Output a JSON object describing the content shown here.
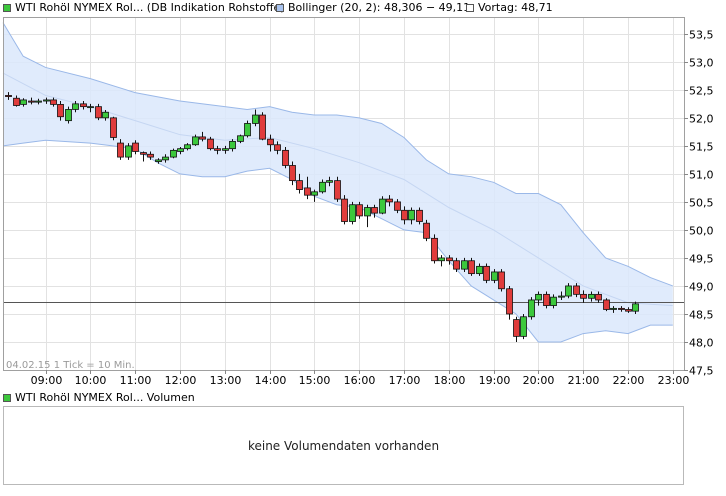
{
  "legend": {
    "series_label": "WTI Rohöl NYMEX Rol... (DB Indikation Rohstoffe)",
    "bollinger_label": "Bollinger (20, 2): 48,306 − 49,11",
    "vortag_label": "Vortag: 48,71",
    "series_color": "#3cc83c",
    "bollinger_color": "#a9c4f0",
    "vortag_color": "#ffffff"
  },
  "chart_info": "04.02.15   1 Tick = 10 Min.",
  "volume": {
    "label": "WTI Rohöl NYMEX Rol... Volumen",
    "color": "#3cc83c",
    "empty_text": "keine Volumendaten vorhanden"
  },
  "chart_data": {
    "type": "candlestick",
    "title": "WTI Rohöl NYMEX Rol... (DB Indikation Rohstoffe)",
    "x_tick_labels": [
      "09:00",
      "10:00",
      "11:00",
      "12:00",
      "13:00",
      "14:00",
      "15:00",
      "16:00",
      "17:00",
      "18:00",
      "19:00",
      "20:00",
      "21:00",
      "22:00",
      "23:00"
    ],
    "y_tick_labels": [
      "53,5",
      "53,0",
      "52,5",
      "52,0",
      "51,5",
      "51,0",
      "50,5",
      "50,0",
      "49,5",
      "49,0",
      "48,5",
      "48,0",
      "47,5"
    ],
    "y_ticks": [
      53.5,
      53.0,
      52.5,
      52.0,
      51.5,
      51.0,
      50.5,
      50.0,
      49.5,
      49.0,
      48.5,
      48.0,
      47.5
    ],
    "ylim": [
      47.5,
      53.8
    ],
    "x_range_hours": [
      8.05,
      23.25
    ],
    "grid": true,
    "reference_line": {
      "name": "Vortag",
      "value": 48.71
    },
    "up_color": "#3cc83c",
    "down_color": "#e03c3c",
    "candles": [
      {
        "t": "08:10",
        "o": 52.4,
        "h": 52.46,
        "l": 52.32,
        "c": 52.38
      },
      {
        "t": "08:20",
        "o": 52.35,
        "h": 52.4,
        "l": 52.2,
        "c": 52.22
      },
      {
        "t": "08:30",
        "o": 52.24,
        "h": 52.35,
        "l": 52.2,
        "c": 52.32
      },
      {
        "t": "08:40",
        "o": 52.3,
        "h": 52.36,
        "l": 52.24,
        "c": 52.28
      },
      {
        "t": "08:50",
        "o": 52.28,
        "h": 52.34,
        "l": 52.24,
        "c": 52.3
      },
      {
        "t": "09:00",
        "o": 52.3,
        "h": 52.36,
        "l": 52.25,
        "c": 52.32
      },
      {
        "t": "09:10",
        "o": 52.32,
        "h": 52.36,
        "l": 52.2,
        "c": 52.24
      },
      {
        "t": "09:20",
        "o": 52.24,
        "h": 52.3,
        "l": 51.95,
        "c": 52.02
      },
      {
        "t": "09:30",
        "o": 51.95,
        "h": 52.2,
        "l": 51.9,
        "c": 52.15
      },
      {
        "t": "09:40",
        "o": 52.15,
        "h": 52.3,
        "l": 52.1,
        "c": 52.25
      },
      {
        "t": "09:50",
        "o": 52.25,
        "h": 52.3,
        "l": 52.15,
        "c": 52.2
      },
      {
        "t": "10:00",
        "o": 52.2,
        "h": 52.25,
        "l": 52.1,
        "c": 52.2
      },
      {
        "t": "10:10",
        "o": 52.2,
        "h": 52.25,
        "l": 51.96,
        "c": 52.0
      },
      {
        "t": "10:20",
        "o": 52.0,
        "h": 52.14,
        "l": 51.95,
        "c": 52.1
      },
      {
        "t": "10:30",
        "o": 52.0,
        "h": 52.02,
        "l": 51.6,
        "c": 51.65
      },
      {
        "t": "10:40",
        "o": 51.55,
        "h": 51.62,
        "l": 51.25,
        "c": 51.3
      },
      {
        "t": "10:50",
        "o": 51.3,
        "h": 51.55,
        "l": 51.25,
        "c": 51.5
      },
      {
        "t": "11:00",
        "o": 51.55,
        "h": 51.6,
        "l": 51.35,
        "c": 51.4
      },
      {
        "t": "11:10",
        "o": 51.38,
        "h": 51.4,
        "l": 51.22,
        "c": 51.35
      },
      {
        "t": "11:20",
        "o": 51.35,
        "h": 51.4,
        "l": 51.25,
        "c": 51.3
      },
      {
        "t": "11:30",
        "o": 51.22,
        "h": 51.28,
        "l": 51.18,
        "c": 51.25
      },
      {
        "t": "11:40",
        "o": 51.25,
        "h": 51.35,
        "l": 51.2,
        "c": 51.3
      },
      {
        "t": "11:50",
        "o": 51.3,
        "h": 51.45,
        "l": 51.28,
        "c": 51.42
      },
      {
        "t": "12:00",
        "o": 51.4,
        "h": 51.48,
        "l": 51.35,
        "c": 51.45
      },
      {
        "t": "12:10",
        "o": 51.45,
        "h": 51.55,
        "l": 51.42,
        "c": 51.52
      },
      {
        "t": "12:20",
        "o": 51.52,
        "h": 51.7,
        "l": 51.5,
        "c": 51.66
      },
      {
        "t": "12:30",
        "o": 51.66,
        "h": 51.75,
        "l": 51.58,
        "c": 51.62
      },
      {
        "t": "12:40",
        "o": 51.62,
        "h": 51.66,
        "l": 51.42,
        "c": 51.45
      },
      {
        "t": "12:50",
        "o": 51.45,
        "h": 51.5,
        "l": 51.35,
        "c": 51.42
      },
      {
        "t": "13:00",
        "o": 51.42,
        "h": 51.5,
        "l": 51.36,
        "c": 51.45
      },
      {
        "t": "13:10",
        "o": 51.45,
        "h": 51.62,
        "l": 51.4,
        "c": 51.58
      },
      {
        "t": "13:20",
        "o": 51.58,
        "h": 51.7,
        "l": 51.55,
        "c": 51.68
      },
      {
        "t": "13:30",
        "o": 51.68,
        "h": 51.95,
        "l": 51.65,
        "c": 51.9
      },
      {
        "t": "13:40",
        "o": 51.9,
        "h": 52.15,
        "l": 51.85,
        "c": 52.05
      },
      {
        "t": "13:50",
        "o": 52.05,
        "h": 52.1,
        "l": 51.6,
        "c": 51.62
      },
      {
        "t": "14:00",
        "o": 51.62,
        "h": 51.7,
        "l": 51.4,
        "c": 51.52
      },
      {
        "t": "14:10",
        "o": 51.52,
        "h": 51.58,
        "l": 51.35,
        "c": 51.42
      },
      {
        "t": "14:20",
        "o": 51.42,
        "h": 51.48,
        "l": 51.1,
        "c": 51.15
      },
      {
        "t": "14:30",
        "o": 51.15,
        "h": 51.22,
        "l": 50.8,
        "c": 50.88
      },
      {
        "t": "14:40",
        "o": 50.88,
        "h": 51.0,
        "l": 50.65,
        "c": 50.72
      },
      {
        "t": "14:50",
        "o": 50.75,
        "h": 50.95,
        "l": 50.55,
        "c": 50.62
      },
      {
        "t": "15:00",
        "o": 50.62,
        "h": 50.72,
        "l": 50.5,
        "c": 50.68
      },
      {
        "t": "15:10",
        "o": 50.68,
        "h": 50.9,
        "l": 50.65,
        "c": 50.85
      },
      {
        "t": "15:20",
        "o": 50.85,
        "h": 50.95,
        "l": 50.78,
        "c": 50.88
      },
      {
        "t": "15:30",
        "o": 50.88,
        "h": 50.95,
        "l": 50.5,
        "c": 50.55
      },
      {
        "t": "15:40",
        "o": 50.55,
        "h": 50.62,
        "l": 50.1,
        "c": 50.15
      },
      {
        "t": "15:50",
        "o": 50.15,
        "h": 50.5,
        "l": 50.1,
        "c": 50.45
      },
      {
        "t": "16:00",
        "o": 50.45,
        "h": 50.5,
        "l": 50.2,
        "c": 50.25
      },
      {
        "t": "16:10",
        "o": 50.25,
        "h": 50.45,
        "l": 50.05,
        "c": 50.4
      },
      {
        "t": "16:20",
        "o": 50.4,
        "h": 50.45,
        "l": 50.22,
        "c": 50.3
      },
      {
        "t": "16:30",
        "o": 50.3,
        "h": 50.6,
        "l": 50.28,
        "c": 50.55
      },
      {
        "t": "16:40",
        "o": 50.55,
        "h": 50.62,
        "l": 50.42,
        "c": 50.5
      },
      {
        "t": "16:50",
        "o": 50.5,
        "h": 50.55,
        "l": 50.3,
        "c": 50.35
      },
      {
        "t": "17:00",
        "o": 50.35,
        "h": 50.42,
        "l": 50.1,
        "c": 50.18
      },
      {
        "t": "17:10",
        "o": 50.18,
        "h": 50.4,
        "l": 50.1,
        "c": 50.35
      },
      {
        "t": "17:20",
        "o": 50.35,
        "h": 50.4,
        "l": 50.1,
        "c": 50.15
      },
      {
        "t": "17:30",
        "o": 50.12,
        "h": 50.18,
        "l": 49.8,
        "c": 49.85
      },
      {
        "t": "17:40",
        "o": 49.85,
        "h": 49.92,
        "l": 49.4,
        "c": 49.45
      },
      {
        "t": "17:50",
        "o": 49.45,
        "h": 49.55,
        "l": 49.35,
        "c": 49.5
      },
      {
        "t": "18:00",
        "o": 49.5,
        "h": 49.55,
        "l": 49.38,
        "c": 49.45
      },
      {
        "t": "18:10",
        "o": 49.45,
        "h": 49.5,
        "l": 49.25,
        "c": 49.3
      },
      {
        "t": "18:20",
        "o": 49.3,
        "h": 49.5,
        "l": 49.25,
        "c": 49.45
      },
      {
        "t": "18:30",
        "o": 49.45,
        "h": 49.5,
        "l": 49.18,
        "c": 49.22
      },
      {
        "t": "18:40",
        "o": 49.22,
        "h": 49.4,
        "l": 49.18,
        "c": 49.35
      },
      {
        "t": "18:50",
        "o": 49.35,
        "h": 49.4,
        "l": 49.05,
        "c": 49.1
      },
      {
        "t": "19:00",
        "o": 49.1,
        "h": 49.3,
        "l": 49.05,
        "c": 49.25
      },
      {
        "t": "19:10",
        "o": 49.25,
        "h": 49.3,
        "l": 48.9,
        "c": 48.95
      },
      {
        "t": "19:20",
        "o": 48.95,
        "h": 49.0,
        "l": 48.4,
        "c": 48.5
      },
      {
        "t": "19:30",
        "o": 48.4,
        "h": 48.45,
        "l": 48.0,
        "c": 48.1
      },
      {
        "t": "19:40",
        "o": 48.1,
        "h": 48.5,
        "l": 48.05,
        "c": 48.45
      },
      {
        "t": "19:50",
        "o": 48.45,
        "h": 48.8,
        "l": 48.4,
        "c": 48.75
      },
      {
        "t": "20:00",
        "o": 48.75,
        "h": 48.9,
        "l": 48.65,
        "c": 48.85
      },
      {
        "t": "20:10",
        "o": 48.85,
        "h": 48.9,
        "l": 48.6,
        "c": 48.65
      },
      {
        "t": "20:20",
        "o": 48.65,
        "h": 48.85,
        "l": 48.6,
        "c": 48.8
      },
      {
        "t": "20:30",
        "o": 48.8,
        "h": 48.9,
        "l": 48.75,
        "c": 48.82
      },
      {
        "t": "20:40",
        "o": 48.82,
        "h": 49.05,
        "l": 48.78,
        "c": 49.0
      },
      {
        "t": "20:50",
        "o": 49.0,
        "h": 49.05,
        "l": 48.8,
        "c": 48.85
      },
      {
        "t": "21:00",
        "o": 48.85,
        "h": 48.92,
        "l": 48.7,
        "c": 48.78
      },
      {
        "t": "21:10",
        "o": 48.78,
        "h": 48.9,
        "l": 48.72,
        "c": 48.85
      },
      {
        "t": "21:20",
        "o": 48.85,
        "h": 48.9,
        "l": 48.7,
        "c": 48.75
      },
      {
        "t": "21:30",
        "o": 48.75,
        "h": 48.78,
        "l": 48.55,
        "c": 48.58
      },
      {
        "t": "21:40",
        "o": 48.58,
        "h": 48.64,
        "l": 48.52,
        "c": 48.6
      },
      {
        "t": "21:50",
        "o": 48.6,
        "h": 48.64,
        "l": 48.54,
        "c": 48.58
      },
      {
        "t": "22:00",
        "o": 48.58,
        "h": 48.62,
        "l": 48.52,
        "c": 48.55
      },
      {
        "t": "22:10",
        "o": 48.55,
        "h": 48.72,
        "l": 48.5,
        "c": 48.68
      }
    ],
    "bollinger": {
      "name": "Bollinger (20, 2)",
      "upper": [
        {
          "t": "08:00",
          "v": 53.7
        },
        {
          "t": "08:30",
          "v": 53.1
        },
        {
          "t": "09:00",
          "v": 52.9
        },
        {
          "t": "10:00",
          "v": 52.7
        },
        {
          "t": "11:00",
          "v": 52.45
        },
        {
          "t": "12:00",
          "v": 52.3
        },
        {
          "t": "13:00",
          "v": 52.2
        },
        {
          "t": "13:30",
          "v": 52.15
        },
        {
          "t": "14:00",
          "v": 52.2
        },
        {
          "t": "14:30",
          "v": 52.1
        },
        {
          "t": "15:00",
          "v": 52.05
        },
        {
          "t": "15:30",
          "v": 52.05
        },
        {
          "t": "16:00",
          "v": 52.0
        },
        {
          "t": "16:30",
          "v": 51.9
        },
        {
          "t": "17:00",
          "v": 51.65
        },
        {
          "t": "17:30",
          "v": 51.25
        },
        {
          "t": "18:00",
          "v": 51.0
        },
        {
          "t": "18:30",
          "v": 50.95
        },
        {
          "t": "19:00",
          "v": 50.85
        },
        {
          "t": "19:30",
          "v": 50.65
        },
        {
          "t": "20:00",
          "v": 50.65
        },
        {
          "t": "20:30",
          "v": 50.45
        },
        {
          "t": "21:00",
          "v": 49.95
        },
        {
          "t": "21:30",
          "v": 49.5
        },
        {
          "t": "22:00",
          "v": 49.35
        },
        {
          "t": "22:30",
          "v": 49.15
        },
        {
          "t": "23:00",
          "v": 49.0
        }
      ],
      "middle": [
        {
          "t": "08:00",
          "v": 52.8
        },
        {
          "t": "09:00",
          "v": 52.4
        },
        {
          "t": "10:00",
          "v": 52.2
        },
        {
          "t": "11:00",
          "v": 51.95
        },
        {
          "t": "12:00",
          "v": 51.7
        },
        {
          "t": "13:00",
          "v": 51.6
        },
        {
          "t": "14:00",
          "v": 51.65
        },
        {
          "t": "15:00",
          "v": 51.45
        },
        {
          "t": "16:00",
          "v": 51.2
        },
        {
          "t": "17:00",
          "v": 50.9
        },
        {
          "t": "18:00",
          "v": 50.4
        },
        {
          "t": "19:00",
          "v": 50.0
        },
        {
          "t": "20:00",
          "v": 49.5
        },
        {
          "t": "21:00",
          "v": 49.0
        },
        {
          "t": "22:00",
          "v": 48.7
        },
        {
          "t": "23:00",
          "v": 48.65
        }
      ],
      "lower": [
        {
          "t": "08:00",
          "v": 51.5
        },
        {
          "t": "08:30",
          "v": 51.55
        },
        {
          "t": "09:00",
          "v": 51.6
        },
        {
          "t": "10:00",
          "v": 51.55
        },
        {
          "t": "11:00",
          "v": 51.45
        },
        {
          "t": "11:30",
          "v": 51.2
        },
        {
          "t": "12:00",
          "v": 51.0
        },
        {
          "t": "12:30",
          "v": 50.95
        },
        {
          "t": "13:00",
          "v": 50.95
        },
        {
          "t": "13:30",
          "v": 51.05
        },
        {
          "t": "14:00",
          "v": 51.1
        },
        {
          "t": "14:30",
          "v": 50.9
        },
        {
          "t": "15:00",
          "v": 50.6
        },
        {
          "t": "15:30",
          "v": 50.45
        },
        {
          "t": "16:00",
          "v": 50.4
        },
        {
          "t": "16:30",
          "v": 50.2
        },
        {
          "t": "17:00",
          "v": 50.0
        },
        {
          "t": "17:30",
          "v": 49.95
        },
        {
          "t": "18:00",
          "v": 49.45
        },
        {
          "t": "18:30",
          "v": 49.0
        },
        {
          "t": "19:00",
          "v": 48.75
        },
        {
          "t": "19:30",
          "v": 48.5
        },
        {
          "t": "20:00",
          "v": 48.0
        },
        {
          "t": "20:30",
          "v": 48.0
        },
        {
          "t": "21:00",
          "v": 48.15
        },
        {
          "t": "21:30",
          "v": 48.2
        },
        {
          "t": "22:00",
          "v": 48.15
        },
        {
          "t": "22:30",
          "v": 48.3
        },
        {
          "t": "23:00",
          "v": 48.3
        }
      ]
    }
  }
}
